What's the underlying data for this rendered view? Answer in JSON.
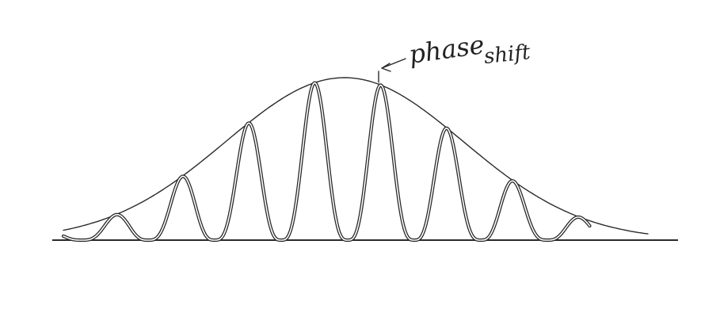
{
  "annotation": {
    "line1": "phase",
    "line2": "shift"
  },
  "colors": {
    "background": "#ffffff",
    "ink": "#2a2a2a"
  }
}
